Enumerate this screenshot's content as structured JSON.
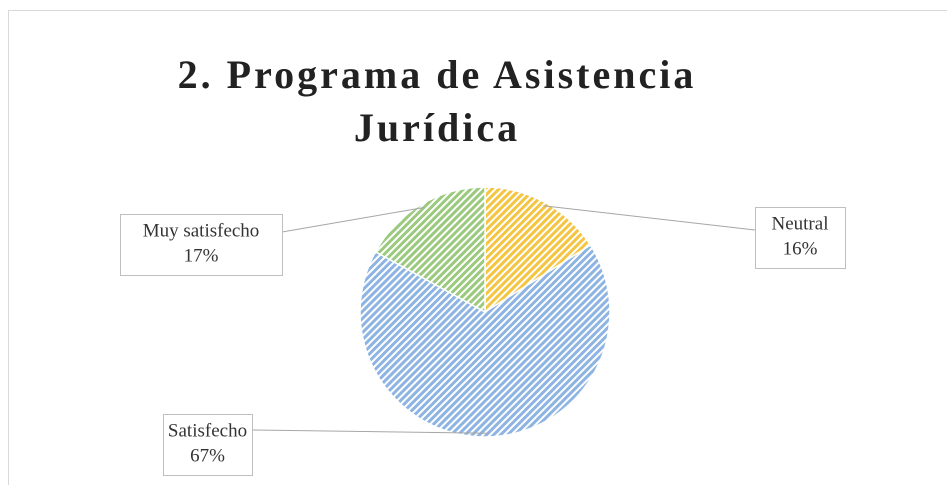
{
  "chart_data": {
    "type": "pie",
    "title": "2. Programa de Asistencia Jurídica",
    "categories": [
      "Neutral",
      "Satisfecho",
      "Muy satisfecho"
    ],
    "values": [
      16,
      67,
      17
    ],
    "value_labels": [
      "16%",
      "67%",
      "17%"
    ],
    "colors": [
      "#f5c542",
      "#8db4e2",
      "#9bc97d"
    ]
  }
}
